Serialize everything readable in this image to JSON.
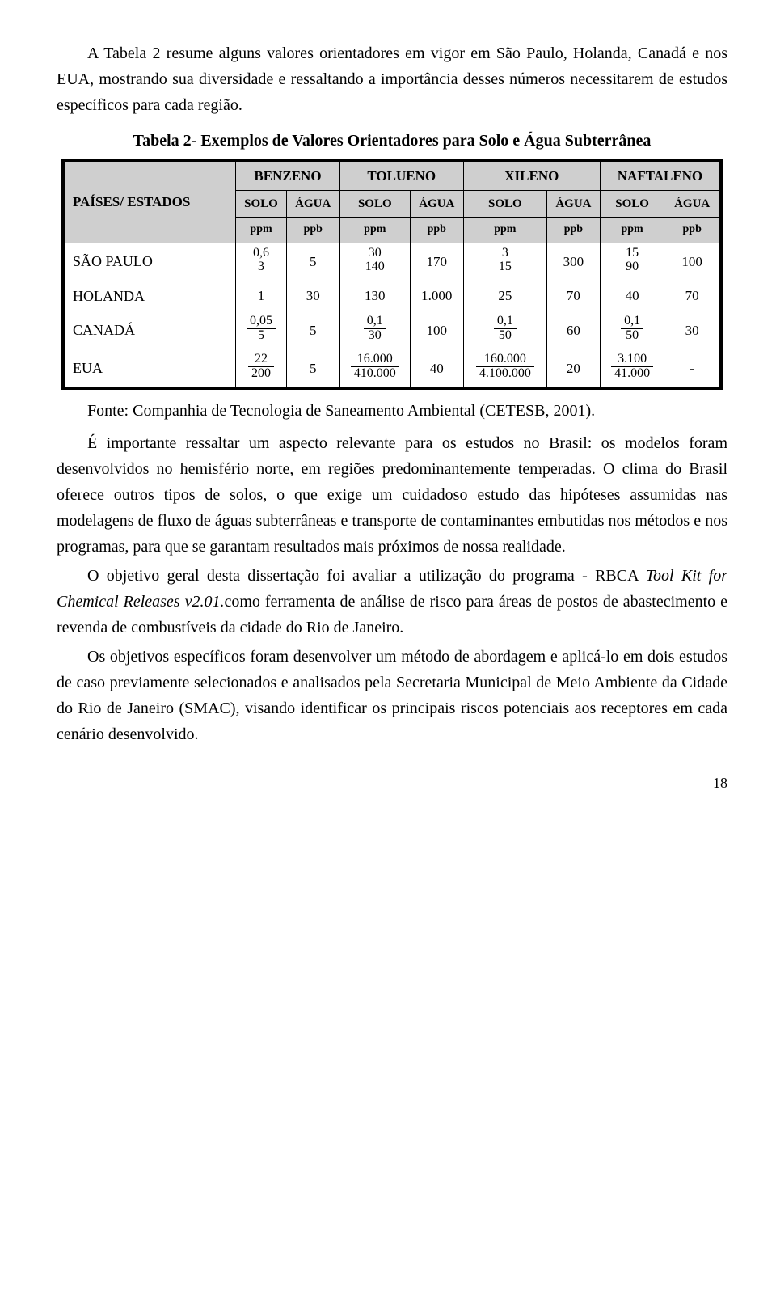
{
  "para1": "A Tabela 2 resume alguns valores orientadores em vigor em São Paulo, Holanda, Canadá e nos EUA, mostrando sua diversidade e ressaltando a importância desses números necessitarem de estudos específicos para cada região.",
  "tableCaption": "Tabela 2- Exemplos de Valores Orientadores para Solo e Água Subterrânea",
  "countriesLabel": "PAÍSES/ ESTADOS",
  "chemicals": [
    "BENZENO",
    "TOLUENO",
    "XILENO",
    "NAFTALENO"
  ],
  "subheads": [
    "SOLO",
    "ÁGUA",
    "SOLO",
    "ÁGUA",
    "SOLO",
    "ÁGUA",
    "SOLO",
    "ÁGUA"
  ],
  "units": [
    "ppm",
    "ppb",
    "ppm",
    "ppb",
    "ppm",
    "ppb",
    "ppm",
    "ppb"
  ],
  "rows": [
    {
      "name": "SÃO PAULO",
      "cells": [
        {
          "frac": [
            "0,6",
            "3"
          ]
        },
        {
          "v": "5"
        },
        {
          "frac": [
            "30",
            "140"
          ]
        },
        {
          "v": "170"
        },
        {
          "frac": [
            "3",
            "15"
          ]
        },
        {
          "v": "300"
        },
        {
          "frac": [
            "15",
            "90"
          ]
        },
        {
          "v": "100"
        }
      ]
    },
    {
      "name": "HOLANDA",
      "cells": [
        {
          "v": "1"
        },
        {
          "v": "30"
        },
        {
          "v": "130"
        },
        {
          "v": "1.000"
        },
        {
          "v": "25"
        },
        {
          "v": "70"
        },
        {
          "v": "40"
        },
        {
          "v": "70"
        }
      ]
    },
    {
      "name": "CANADÁ",
      "cells": [
        {
          "frac": [
            "0,05",
            "5"
          ]
        },
        {
          "v": "5"
        },
        {
          "frac": [
            "0,1",
            "30"
          ]
        },
        {
          "v": "100"
        },
        {
          "frac": [
            "0,1",
            "50"
          ]
        },
        {
          "v": "60"
        },
        {
          "frac": [
            "0,1",
            "50"
          ]
        },
        {
          "v": "30"
        }
      ]
    },
    {
      "name": "EUA",
      "cells": [
        {
          "frac": [
            "22",
            "200"
          ]
        },
        {
          "v": "5"
        },
        {
          "frac": [
            "16.000",
            "410.000"
          ]
        },
        {
          "v": "40"
        },
        {
          "frac": [
            "160.000",
            "4.100.000"
          ]
        },
        {
          "v": "20"
        },
        {
          "frac": [
            "3.100",
            "41.000"
          ]
        },
        {
          "v": "-"
        }
      ]
    }
  ],
  "source": "Fonte: Companhia de Tecnologia de Saneamento Ambiental (CETESB, 2001).",
  "para2": "É importante ressaltar um aspecto relevante para os estudos no Brasil: os modelos foram desenvolvidos no hemisfério norte, em regiões predominantemente temperadas. O clima do Brasil oferece outros tipos de solos, o que exige um cuidadoso estudo das hipóteses assumidas nas modelagens de fluxo de águas subterrâneas e transporte de contaminantes embutidas nos métodos e nos programas, para que se garantam resultados mais próximos de nossa realidade.",
  "para3a": "O objetivo geral desta dissertação foi avaliar a utilização do programa - RBCA ",
  "para3italic": "Tool Kit for Chemical Releases v2.01.",
  "para3b": "como ferramenta de análise de risco para áreas de postos de abastecimento e revenda de combustíveis da cidade do Rio de Janeiro.",
  "para4": "Os objetivos específicos foram desenvolver um método de abordagem e aplicá-lo em dois estudos de caso previamente selecionados e analisados pela Secretaria Municipal de Meio Ambiente da Cidade do Rio de Janeiro (SMAC), visando identificar os principais riscos potenciais aos receptores em cada cenário desenvolvido.",
  "pageNumber": "18"
}
